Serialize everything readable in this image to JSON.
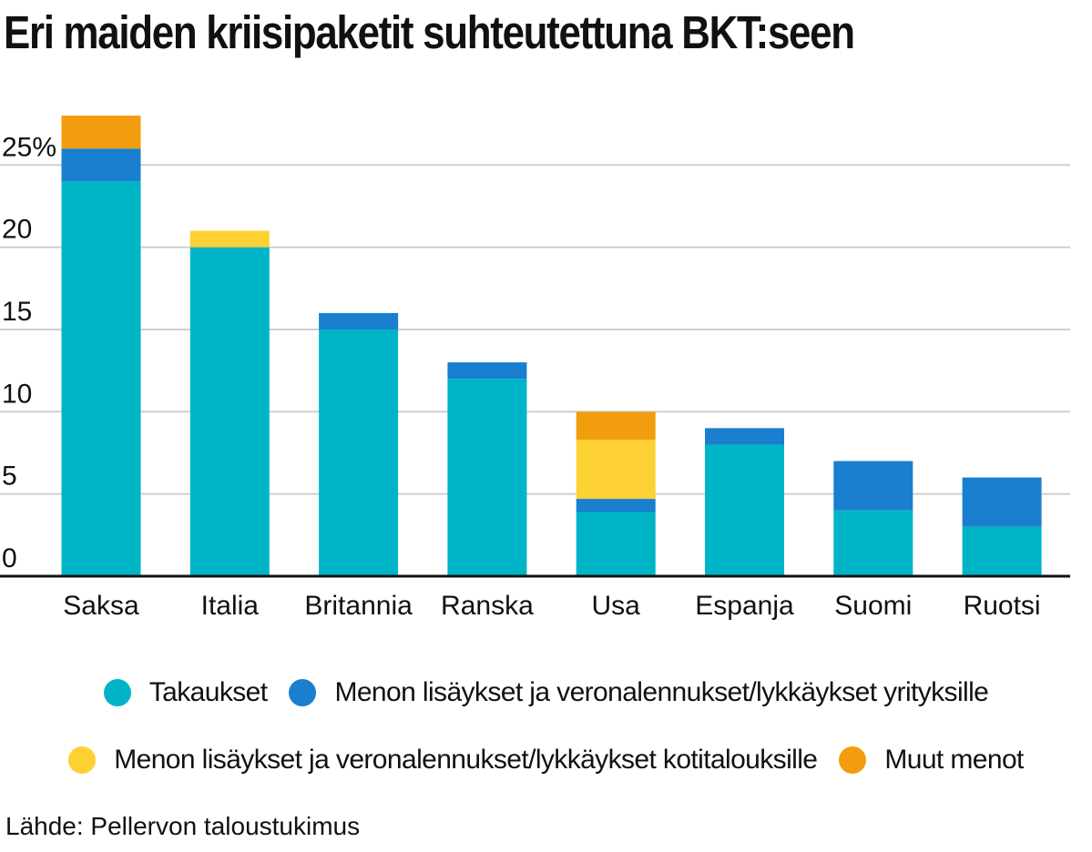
{
  "chart_data": {
    "type": "bar",
    "stacked": true,
    "title": "Eri maiden kriisipaketit suhteutettuna BKT:seen",
    "source": "Lähde: Pellervon taloustukimus",
    "categories": [
      "Saksa",
      "Italia",
      "Britannia",
      "Ranska",
      "Usa",
      "Espanja",
      "Suomi",
      "Ruotsi"
    ],
    "y_ticks": [
      "0",
      "5",
      "10",
      "15",
      "20",
      "25%"
    ],
    "ylim": [
      0,
      28
    ],
    "grid": true,
    "legend_position": "bottom",
    "series": [
      {
        "name": "Takaukset",
        "color": "#00b4c8",
        "values": [
          24,
          20,
          15,
          12,
          3.9,
          8,
          4,
          3
        ]
      },
      {
        "name": "Menon lisäykset ja veronalennukset/lykkäykset yrityksille",
        "color": "#1a7fce",
        "values": [
          2,
          0,
          1,
          1,
          0.8,
          1,
          3,
          3
        ]
      },
      {
        "name": "Menon lisäykset ja veronalennukset/lykkäykset kotitalouksille",
        "color": "#fdd134",
        "values": [
          0,
          1,
          0,
          0,
          3.6,
          0,
          0,
          0
        ]
      },
      {
        "name": "Muut menot",
        "color": "#f29d0e",
        "values": [
          2,
          0,
          0,
          0,
          1.7,
          0,
          0,
          0
        ]
      }
    ]
  }
}
